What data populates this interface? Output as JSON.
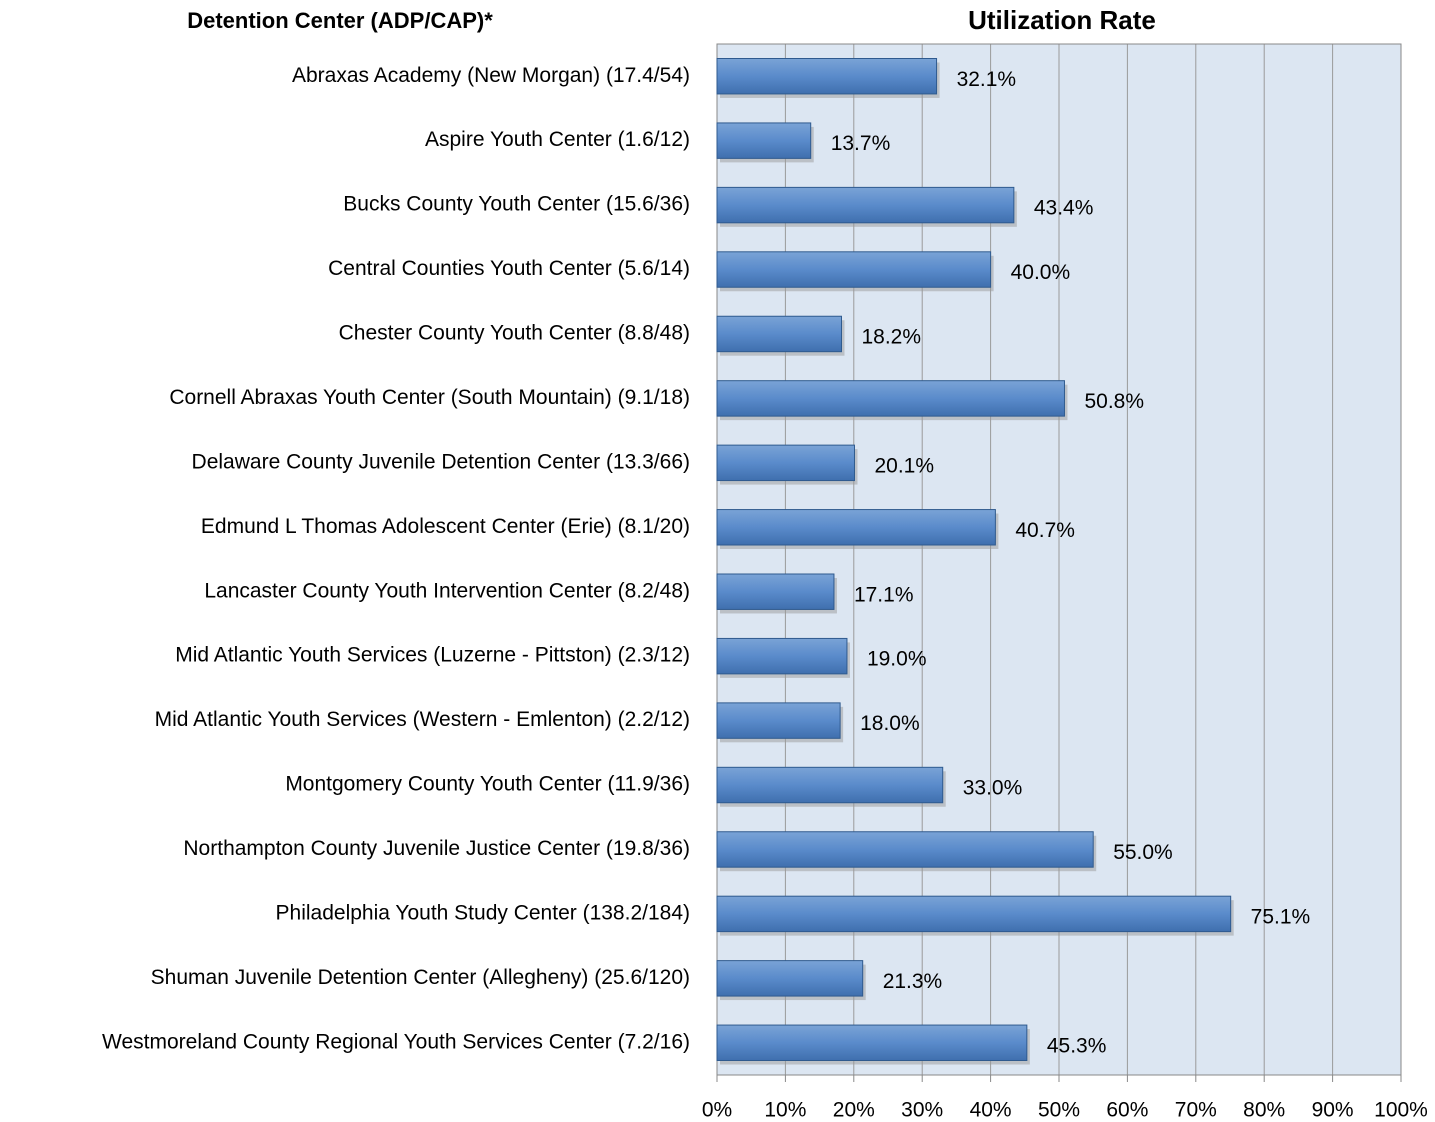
{
  "chart_data": {
    "type": "barh",
    "title": "Utilization Rate",
    "y_axis_label": "Detention Center (ADP/CAP)*",
    "categories": [
      "Abraxas Academy (New Morgan) (17.4/54)",
      "Aspire Youth Center (1.6/12)",
      "Bucks County Youth Center (15.6/36)",
      "Central Counties Youth Center (5.6/14)",
      "Chester County Youth Center (8.8/48)",
      "Cornell Abraxas Youth Center (South Mountain) (9.1/18)",
      "Delaware County Juvenile Detention Center (13.3/66)",
      "Edmund L Thomas Adolescent Center (Erie) (8.1/20)",
      "Lancaster County Youth Intervention Center (8.2/48)",
      "Mid Atlantic Youth Services (Luzerne - Pittston) (2.3/12)",
      "Mid Atlantic Youth Services (Western - Emlenton) (2.2/12)",
      "Montgomery County Youth Center (11.9/36)",
      "Northampton County Juvenile Justice Center (19.8/36)",
      "Philadelphia Youth Study Center (138.2/184)",
      "Shuman Juvenile Detention Center (Allegheny) (25.6/120)",
      "Westmoreland County Regional Youth Services Center (7.2/16)"
    ],
    "values": [
      32.1,
      13.7,
      43.4,
      40.0,
      18.2,
      50.8,
      20.1,
      40.7,
      17.1,
      19.0,
      18.0,
      33.0,
      55.0,
      75.1,
      21.3,
      45.3
    ],
    "value_labels": [
      "32.1%",
      "13.7%",
      "43.4%",
      "40.0%",
      "18.2%",
      "50.8%",
      "20.1%",
      "40.7%",
      "17.1%",
      "19.0%",
      "18.0%",
      "33.0%",
      "55.0%",
      "75.1%",
      "21.3%",
      "45.3%"
    ],
    "color": "#4f81bd",
    "xlim": [
      0,
      100
    ],
    "xticks": [
      {
        "value": 0,
        "label": "0%"
      },
      {
        "value": 10,
        "label": "10%"
      },
      {
        "value": 20,
        "label": "20%"
      },
      {
        "value": 30,
        "label": "30%"
      },
      {
        "value": 40,
        "label": "40%"
      },
      {
        "value": 50,
        "label": "50%"
      },
      {
        "value": 60,
        "label": "60%"
      },
      {
        "value": 70,
        "label": "70%"
      },
      {
        "value": 80,
        "label": "80%"
      },
      {
        "value": 90,
        "label": "90%"
      },
      {
        "value": 100,
        "label": "100%"
      }
    ],
    "grid": true
  }
}
